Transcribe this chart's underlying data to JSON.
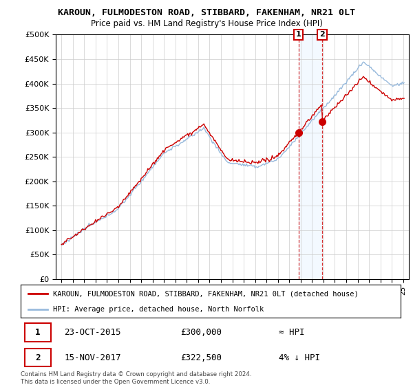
{
  "title": "KAROUN, FULMODESTON ROAD, STIBBARD, FAKENHAM, NR21 0LT",
  "subtitle": "Price paid vs. HM Land Registry's House Price Index (HPI)",
  "ylabel_ticks": [
    "£0",
    "£50K",
    "£100K",
    "£150K",
    "£200K",
    "£250K",
    "£300K",
    "£350K",
    "£400K",
    "£450K",
    "£500K"
  ],
  "ytick_values": [
    0,
    50000,
    100000,
    150000,
    200000,
    250000,
    300000,
    350000,
    400000,
    450000,
    500000
  ],
  "ylim": [
    0,
    500000
  ],
  "xlim_start": 1994.5,
  "xlim_end": 2025.5,
  "sale1_date": 2015.81,
  "sale1_price": 300000,
  "sale2_date": 2017.88,
  "sale2_price": 322500,
  "legend_line1": "KAROUN, FULMODESTON ROAD, STIBBARD, FAKENHAM, NR21 0LT (detached house)",
  "legend_line2": "HPI: Average price, detached house, North Norfolk",
  "sale1_text_date": "23-OCT-2015",
  "sale1_text_price": "£300,000",
  "sale1_text_hpi": "≈ HPI",
  "sale2_text_date": "15-NOV-2017",
  "sale2_text_price": "£322,500",
  "sale2_text_hpi": "4% ↓ HPI",
  "footer": "Contains HM Land Registry data © Crown copyright and database right 2024.\nThis data is licensed under the Open Government Licence v3.0.",
  "sale_color": "#cc0000",
  "hpi_color": "#99bbdd",
  "shaded_region_color": "#ddeeff",
  "background_color": "#ffffff",
  "grid_color": "#cccccc"
}
